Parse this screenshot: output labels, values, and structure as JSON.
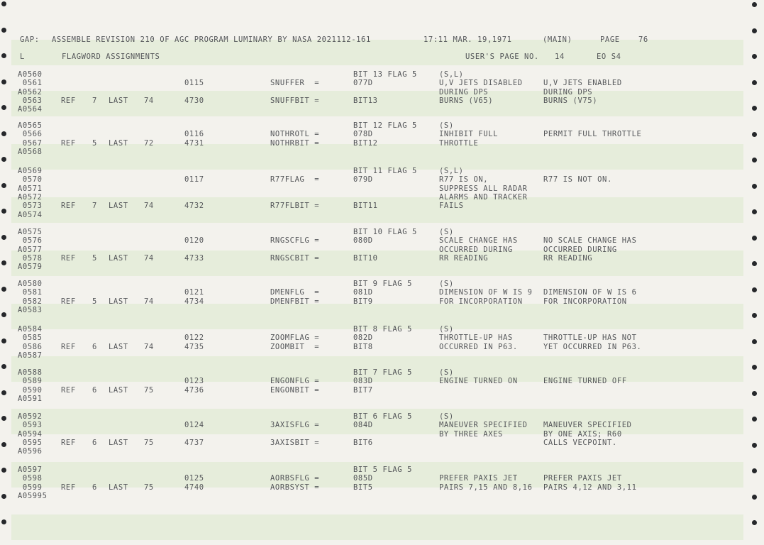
{
  "header": {
    "gap_label": "GAP:",
    "assembly": "ASSEMBLE REVISION 210 OF AGC PROGRAM LUMINARY BY NASA 2021112-161",
    "datetime": "17:11 MAR. 19,1971",
    "main_tag": "(MAIN)",
    "page_label": "PAGE",
    "page_number": "76"
  },
  "subheader": {
    "log_label": "L",
    "section_title": "FLAGWORD ASSIGNMENTS",
    "users_page_label": "USER'S PAGE NO.",
    "users_page_number": "14",
    "code": "EO S4"
  },
  "entries": [
    {
      "lines": [
        "A0560",
        " 0561",
        "A0562",
        " 0563",
        "A0564"
      ],
      "ref": "REF",
      "ref_count": "7",
      "last": "LAST",
      "last_page": "74",
      "addr1": "0115",
      "addr2": "4730",
      "sym1": "SNUFFER  =",
      "sym2": "SNUFFBIT =",
      "bitflag": "BIT 13 FLAG 5",
      "code1": "077D",
      "code2": "BIT13",
      "tag": "(S,L)",
      "set_desc": [
        "U,V JETS DISABLED",
        "DURING DPS",
        "BURNS (V65)"
      ],
      "reset_desc": [
        "U,V JETS ENABLED",
        "DURING DPS",
        "BURNS (V75)"
      ]
    },
    {
      "lines": [
        "A0565",
        " 0566",
        " 0567",
        "A0568"
      ],
      "ref": "REF",
      "ref_count": "5",
      "last": "LAST",
      "last_page": "72",
      "addr1": "0116",
      "addr2": "4731",
      "sym1": "NOTHROTL =",
      "sym2": "NOTHRBIT =",
      "bitflag": "BIT 12 FLAG 5",
      "code1": "078D",
      "code2": "BIT12",
      "tag": "(S)",
      "set_desc": [
        "INHIBIT FULL",
        "THROTTLE"
      ],
      "reset_desc": [
        "PERMIT FULL THROTTLE"
      ]
    },
    {
      "lines": [
        "A0569",
        " 0570",
        "A0571",
        "A0572",
        " 0573",
        "A0574"
      ],
      "ref": "REF",
      "ref_count": "7",
      "last": "LAST",
      "last_page": "74",
      "addr1": "0117",
      "addr2": "4732",
      "sym1": "R77FLAG  =",
      "sym2": "R77FLBIT =",
      "bitflag": "BIT 11 FLAG 5",
      "code1": "079D",
      "code2": "BIT11",
      "tag": "(S,L)",
      "set_desc": [
        "R77 IS ON,",
        "SUPPRESS ALL RADAR",
        "ALARMS AND TRACKER",
        "FAILS"
      ],
      "reset_desc": [
        "R77 IS NOT ON."
      ]
    },
    {
      "lines": [
        "A0575",
        " 0576",
        "A0577",
        " 0578",
        "A0579"
      ],
      "ref": "REF",
      "ref_count": "5",
      "last": "LAST",
      "last_page": "74",
      "addr1": "0120",
      "addr2": "4733",
      "sym1": "RNGSCFLG =",
      "sym2": "RNGSCBIT =",
      "bitflag": "BIT 10 FLAG 5",
      "code1": "080D",
      "code2": "BIT10",
      "tag": "(S)",
      "set_desc": [
        "SCALE CHANGE HAS",
        "OCCURRED DURING",
        "RR READING"
      ],
      "reset_desc": [
        "NO SCALE CHANGE HAS",
        "OCCURRED DURING",
        "RR READING"
      ]
    },
    {
      "lines": [
        "A0580",
        " 0581",
        " 0582",
        "A0583"
      ],
      "ref": "REF",
      "ref_count": "5",
      "last": "LAST",
      "last_page": "74",
      "addr1": "0121",
      "addr2": "4734",
      "sym1": "DMENFLG  =",
      "sym2": "DMENFBIT =",
      "bitflag": "BIT 9 FLAG 5",
      "code1": "081D",
      "code2": "BIT9",
      "tag": "(S)",
      "set_desc": [
        "DIMENSION OF W IS 9",
        "FOR INCORPORATION"
      ],
      "reset_desc": [
        "DIMENSION OF W IS 6",
        "FOR INCORPORATION"
      ]
    },
    {
      "lines": [
        "A0584",
        " 0585",
        " 0586",
        "A0587"
      ],
      "ref": "REF",
      "ref_count": "6",
      "last": "LAST",
      "last_page": "74",
      "addr1": "0122",
      "addr2": "4735",
      "sym1": "ZOOMFLAG =",
      "sym2": "ZOOMBIT  =",
      "bitflag": "BIT 8 FLAG 5",
      "code1": "082D",
      "code2": "BIT8",
      "tag": "(S)",
      "set_desc": [
        "THROTTLE-UP HAS",
        "OCCURRED IN P63."
      ],
      "reset_desc": [
        "THROTTLE-UP HAS NOT",
        "YET OCCURRED IN P63."
      ]
    },
    {
      "lines": [
        "A0588",
        " 0589",
        " 0590",
        "A0591"
      ],
      "ref": "REF",
      "ref_count": "6",
      "last": "LAST",
      "last_page": "75",
      "addr1": "0123",
      "addr2": "4736",
      "sym1": "ENGONFLG =",
      "sym2": "ENGONBIT =",
      "bitflag": "BIT 7 FLAG 5",
      "code1": "083D",
      "code2": "BIT7",
      "tag": "(S)",
      "set_desc": [
        "ENGINE TURNED ON"
      ],
      "reset_desc": [
        "ENGINE TURNED OFF"
      ]
    },
    {
      "lines": [
        "A0592",
        " 0593",
        "A0594",
        " 0595",
        "A0596"
      ],
      "ref": "REF",
      "ref_count": "6",
      "last": "LAST",
      "last_page": "75",
      "addr1": "0124",
      "addr2": "4737",
      "sym1": "3AXISFLG =",
      "sym2": "3AXISBIT =",
      "bitflag": "BIT 6 FLAG 5",
      "code1": "084D",
      "code2": "BIT6",
      "tag": "(S)",
      "set_desc": [
        "MANEUVER SPECIFIED",
        "BY THREE AXES"
      ],
      "reset_desc": [
        "MANEUVER SPECIFIED",
        "BY ONE AXIS; R60",
        "CALLS VECPOINT."
      ]
    },
    {
      "lines": [
        "A0597",
        " 0598",
        " 0599",
        "A05995"
      ],
      "ref": "REF",
      "ref_count": "6",
      "last": "LAST",
      "last_page": "75",
      "addr1": "0125",
      "addr2": "4740",
      "sym1": "AORBSFLG =",
      "sym2": "AORBSYST =",
      "bitflag": "BIT 5 FLAG 5",
      "code1": "085D",
      "code2": "BIT5",
      "tag": "",
      "set_desc": [
        "PREFER PAXIS JET",
        "PAIRS 7,15 AND 8,16"
      ],
      "reset_desc": [
        "PREFER PAXIS JET",
        "PAIRS 4,12 AND 3,11"
      ]
    }
  ]
}
